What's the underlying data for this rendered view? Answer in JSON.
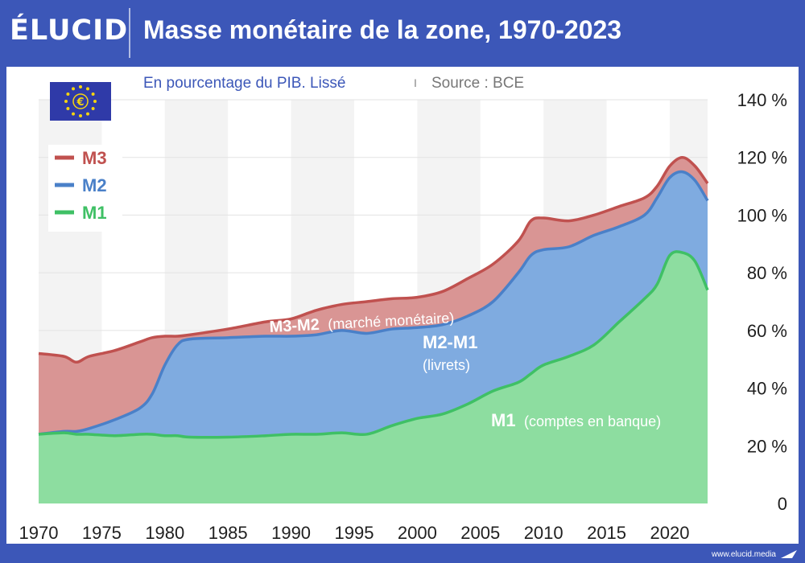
{
  "brand": "ÉLUCID",
  "header": {
    "title": "Masse monétaire de la zone, 1970-2023"
  },
  "subtitle": {
    "main": "En pourcentage du PIB. Lissé",
    "separator": "I",
    "source": "Source : BCE"
  },
  "footer": {
    "url": "www.elucid.media"
  },
  "icons": {
    "flag": "eu-flag-icon"
  },
  "colors": {
    "header_bg": "#3c57b8",
    "m3_line": "#c0514f",
    "m3_fill": "#d99594",
    "m2_line": "#4a80c8",
    "m2_fill": "#7fabe0",
    "m1_line": "#3fc065",
    "m1_fill": "#8ddda0",
    "annotation_text": "#ffffff",
    "subtitle_text": "#3c57b8"
  },
  "annotations": [
    {
      "bold": "M3-M2",
      "normal": "(marché monétaire)"
    },
    {
      "bold": "M2-M1",
      "normal": "(livrets)"
    },
    {
      "bold": "M1",
      "normal": "(comptes en banque)"
    }
  ],
  "chart_data": {
    "type": "area",
    "x": [
      1970,
      1972,
      1973,
      1974,
      1976,
      1978,
      1979,
      1980,
      1981,
      1982,
      1985,
      1988,
      1990,
      1992,
      1994,
      1996,
      1998,
      2000,
      2002,
      2004,
      2006,
      2008,
      2009,
      2010,
      2012,
      2014,
      2016,
      2018,
      2019,
      2020,
      2021,
      2022,
      2023
    ],
    "series": [
      {
        "name": "M3",
        "values": [
          52,
          51,
          49,
          51,
          53,
          56,
          57.5,
          58,
          58,
          58.5,
          60.5,
          63,
          64,
          67,
          69,
          70,
          71,
          71.5,
          73.5,
          78,
          83,
          91,
          98,
          99,
          98,
          100,
          103,
          106,
          110,
          117,
          120,
          117,
          111
        ]
      },
      {
        "name": "M2",
        "values": [
          24,
          25,
          25,
          26,
          29,
          33,
          38,
          48,
          55,
          57,
          57.5,
          58,
          58,
          58.5,
          60,
          59,
          60.5,
          61,
          62,
          65,
          70,
          80,
          86,
          88,
          89,
          93,
          96,
          100,
          106,
          113,
          115,
          112,
          105
        ]
      },
      {
        "name": "M1",
        "values": [
          24,
          24.5,
          24,
          24,
          23.5,
          24,
          24,
          23.5,
          23.5,
          23,
          23,
          23.5,
          24,
          24,
          24.5,
          24,
          27,
          29.5,
          31,
          34.5,
          39,
          42,
          45,
          48,
          51,
          55,
          63,
          71,
          76,
          86,
          87,
          84,
          74
        ]
      }
    ],
    "legend": [
      "M3",
      "M2",
      "M1"
    ],
    "legend_position": "top-left",
    "xticks": [
      "1970",
      "1975",
      "1980",
      "1985",
      "1990",
      "1995",
      "2000",
      "2005",
      "2010",
      "2015",
      "2020"
    ],
    "yticks": [
      "0",
      "20 %",
      "40 %",
      "60 %",
      "80 %",
      "100 %",
      "120 %",
      "140 %"
    ],
    "xlim": [
      1970,
      2023
    ],
    "ylim": [
      0,
      140
    ],
    "grid": "horizontal",
    "banded_background": true
  }
}
